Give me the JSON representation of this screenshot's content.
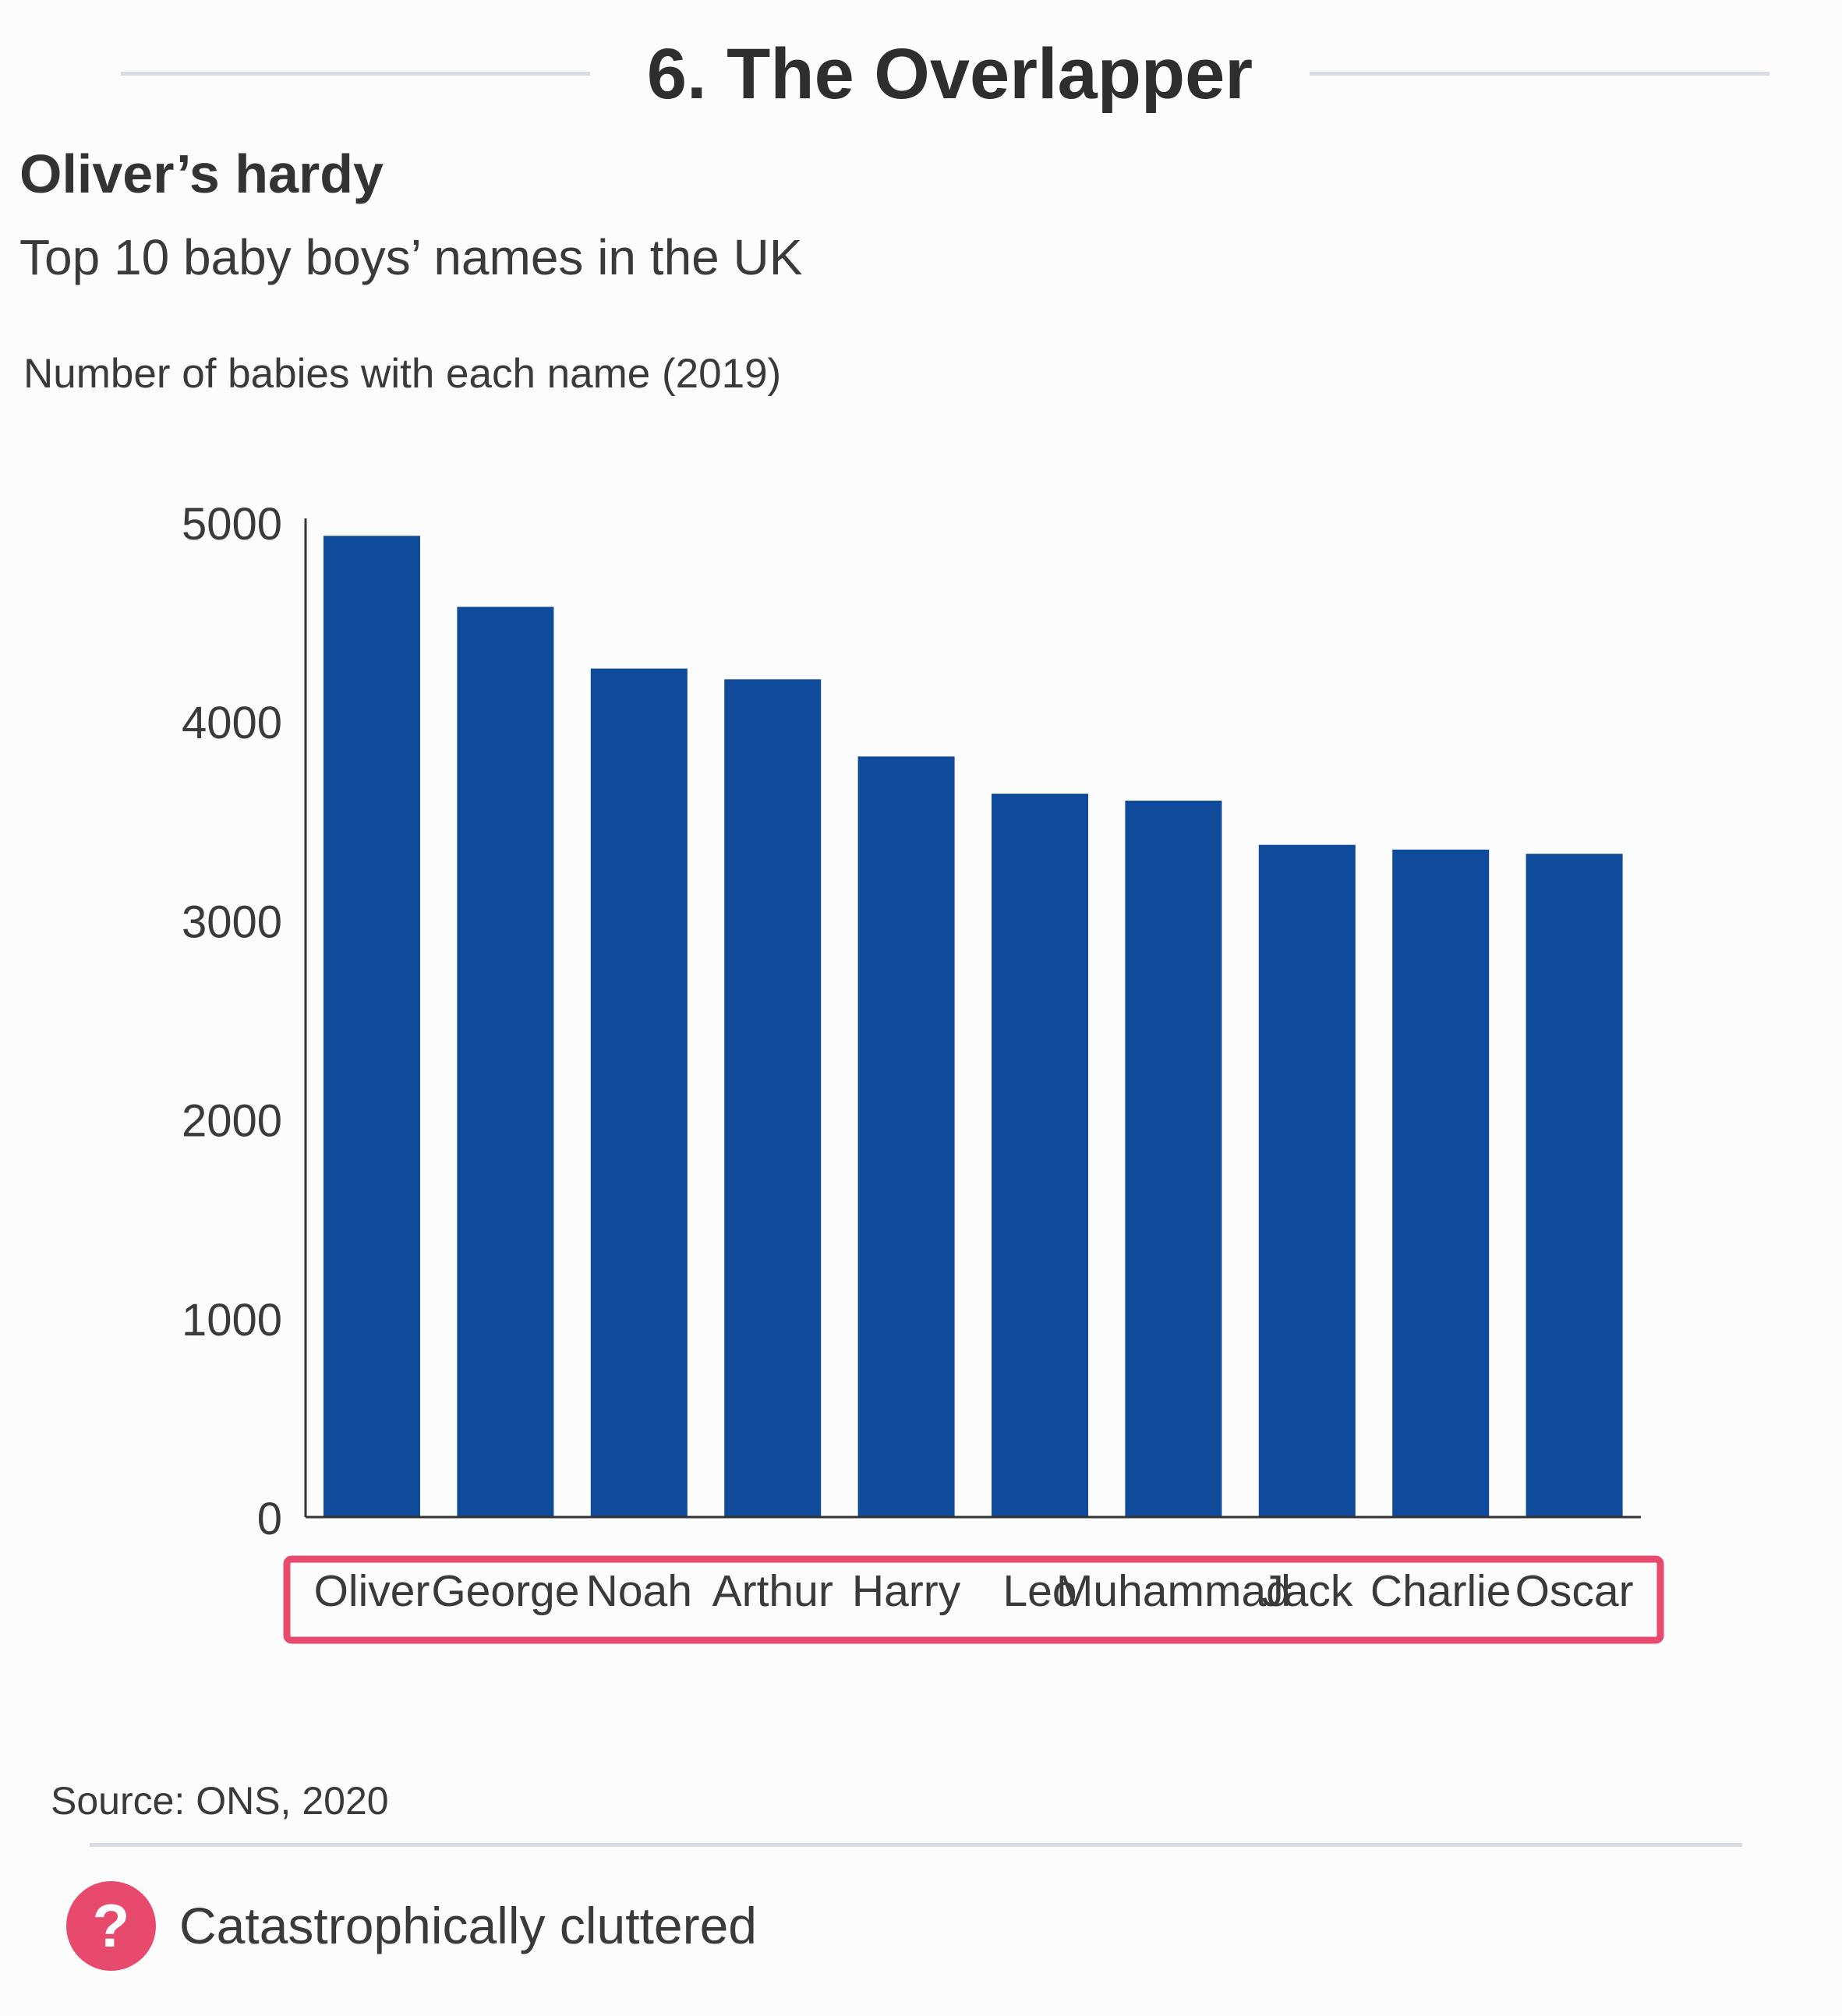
{
  "heading": "6. The Overlapper",
  "chart_data": {
    "type": "bar",
    "title": "Oliver’s hardy",
    "subtitle": "Top 10 baby boys’ names in the UK",
    "ylabel": "Number of babies with each name (2019)",
    "xlabel": "",
    "categories": [
      "Oliver",
      "George",
      "Noah",
      "Arthur",
      "Harry",
      "Leo",
      "Muhammad",
      "Jack",
      "Charlie",
      "Oscar"
    ],
    "values": [
      4932,
      4575,
      4265,
      4211,
      3823,
      3636,
      3601,
      3379,
      3355,
      3334
    ],
    "ylim": [
      0,
      5000
    ],
    "yticks": [
      0,
      1000,
      2000,
      3000,
      4000,
      5000
    ],
    "grid": false,
    "highlight": "x-axis labels overlapping",
    "colors": {
      "bar": "#0f4b9a",
      "highlight": "#e84a6d",
      "axis": "#333333",
      "text": "#3a3a3a"
    }
  },
  "source": "Source: ONS, 2020",
  "verdict": {
    "icon": "question-icon",
    "symbol": "?",
    "label": "Catastrophically cluttered"
  }
}
